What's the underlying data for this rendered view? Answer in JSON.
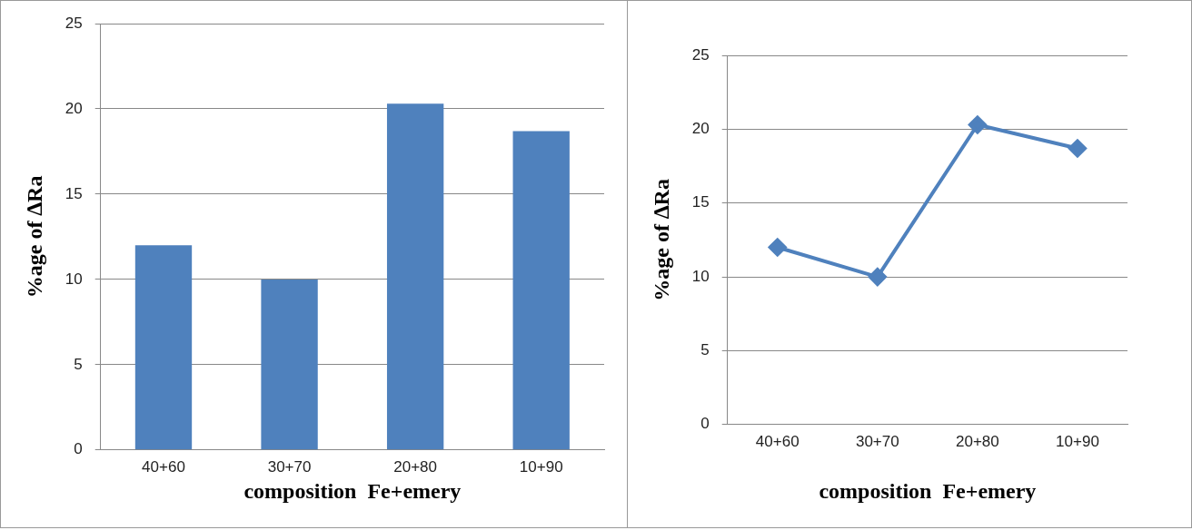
{
  "chart_data": [
    {
      "type": "bar",
      "xlabel": "composition  Fe+emery",
      "ylabel": "%age of ∆Ra",
      "categories": [
        "40+60",
        "30+70",
        "20+80",
        "10+90"
      ],
      "values": [
        12,
        10,
        20.3,
        18.7
      ],
      "color": "#4f81bd",
      "ylim": [
        0,
        25
      ],
      "yticks": [
        0,
        5,
        10,
        15,
        20,
        25
      ],
      "grid": "y",
      "legend": false
    },
    {
      "type": "line",
      "xlabel": "composition  Fe+emery",
      "ylabel": "%age of ∆Ra",
      "categories": [
        "40+60",
        "30+70",
        "20+80",
        "10+90"
      ],
      "values": [
        12,
        10,
        20.3,
        18.7
      ],
      "color": "#4f81bd",
      "ylim": [
        0,
        25
      ],
      "yticks": [
        0,
        5,
        10,
        15,
        20,
        25
      ],
      "grid": "y",
      "legend": false,
      "marker": "diamond",
      "line_style": "solid"
    }
  ]
}
